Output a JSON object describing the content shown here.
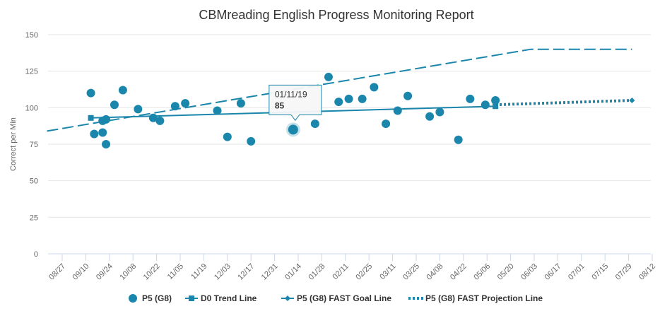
{
  "chart_data": {
    "type": "scatter",
    "title": "CBMreading English Progress Monitoring Report",
    "ylabel": "Correct per Min",
    "xlabel": "",
    "ylim": [
      0,
      150
    ],
    "yticks": [
      "0",
      "25",
      "50",
      "75",
      "100",
      "125",
      "150"
    ],
    "x_axis": {
      "ticks": [
        "08/27",
        "09/10",
        "09/24",
        "10/08",
        "10/22",
        "11/05",
        "11/19",
        "12/03",
        "12/17",
        "12/31",
        "01/14",
        "01/28",
        "02/11",
        "02/25",
        "03/11",
        "03/25",
        "04/08",
        "04/22",
        "05/06",
        "05/20",
        "06/03",
        "06/17",
        "07/01",
        "07/15",
        "07/29",
        "08/12"
      ],
      "interval_days": 14
    },
    "grid": "horizontal",
    "legend_position": "bottom",
    "colors": {
      "primary": "#1a86ab",
      "grid": "#e6e6e6",
      "axis": "#ccd6eb"
    },
    "series": [
      {
        "name": "P5 (G8)",
        "kind": "scatter",
        "points": [
          {
            "x": "09/13",
            "y": 110
          },
          {
            "x": "09/15",
            "y": 82
          },
          {
            "x": "09/20",
            "y": 91
          },
          {
            "x": "09/20",
            "y": 83
          },
          {
            "x": "09/22",
            "y": 92
          },
          {
            "x": "09/22",
            "y": 75
          },
          {
            "x": "09/27",
            "y": 102
          },
          {
            "x": "10/02",
            "y": 112
          },
          {
            "x": "10/11",
            "y": 99
          },
          {
            "x": "10/20",
            "y": 93
          },
          {
            "x": "10/24",
            "y": 91
          },
          {
            "x": "11/02",
            "y": 101
          },
          {
            "x": "11/08",
            "y": 103
          },
          {
            "x": "11/27",
            "y": 98
          },
          {
            "x": "12/03",
            "y": 80
          },
          {
            "x": "12/11",
            "y": 103
          },
          {
            "x": "12/17",
            "y": 77
          },
          {
            "x": "01/11",
            "y": 85
          },
          {
            "x": "01/24",
            "y": 89
          },
          {
            "x": "02/01",
            "y": 121
          },
          {
            "x": "02/07",
            "y": 104
          },
          {
            "x": "02/13",
            "y": 106
          },
          {
            "x": "02/21",
            "y": 106
          },
          {
            "x": "02/28",
            "y": 114
          },
          {
            "x": "03/07",
            "y": 89
          },
          {
            "x": "03/14",
            "y": 98
          },
          {
            "x": "03/20",
            "y": 108
          },
          {
            "x": "04/02",
            "y": 94
          },
          {
            "x": "04/08",
            "y": 97
          },
          {
            "x": "04/19",
            "y": 78
          },
          {
            "x": "04/26",
            "y": 106
          },
          {
            "x": "05/05",
            "y": 102
          },
          {
            "x": "05/11",
            "y": 105
          }
        ]
      },
      {
        "name": "D0 Trend Line",
        "kind": "line",
        "points": [
          {
            "x": "09/13",
            "y": 93
          },
          {
            "x": "05/11",
            "y": 101
          }
        ]
      },
      {
        "name": "P5 (G8) FAST Goal Line",
        "kind": "dashed-line",
        "points": [
          {
            "x": "08/18",
            "y": 84
          },
          {
            "x": "06/01",
            "y": 140
          },
          {
            "x": "07/31",
            "y": 140
          }
        ]
      },
      {
        "name": "P5 (G8) FAST Projection Line",
        "kind": "dotted-line",
        "points": [
          {
            "x": "05/11",
            "y": 102
          },
          {
            "x": "07/31",
            "y": 105
          }
        ]
      }
    ],
    "tooltip": {
      "date": "01/11/19",
      "value": "85"
    }
  }
}
